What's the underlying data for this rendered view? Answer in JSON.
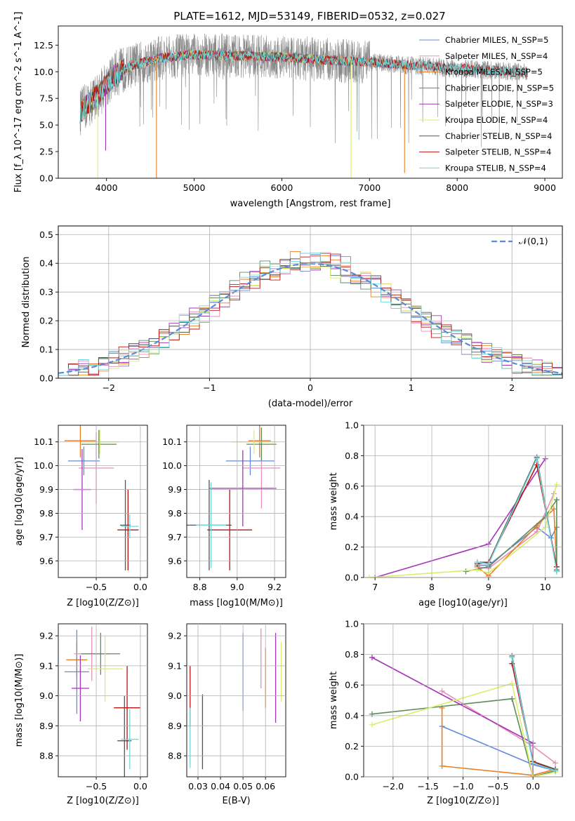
{
  "figure": {
    "title": "PLATE=1612, MJD=53149, FIBERID=0532, z=0.027"
  },
  "colors": {
    "chabrier_miles": "#6688dd",
    "salpeter_miles": "#e68fba",
    "kroupa_miles": "#e87e22",
    "chabrier_elodie": "#5e8c5e",
    "salpeter_elodie": "#a634b8",
    "kroupa_elodie": "#d9ef6a",
    "chabrier_stelib": "#555555",
    "salpeter_stelib": "#b81414",
    "kroupa_stelib": "#6fd8d8",
    "gauss": "#5b8bd6",
    "data": "#8a8a8a",
    "grid": "#b0b0b0"
  },
  "chart_data": [
    {
      "id": "spectrum",
      "type": "line",
      "xlabel": "wavelength [Angstrom, rest frame]",
      "ylabel": "Flux [f_λ 10^-17 erg cm^-2 s^-1 A^-1]",
      "xlim": [
        3450,
        9200
      ],
      "ylim": [
        0,
        14.3
      ],
      "xticks": [
        4000,
        5000,
        6000,
        7000,
        8000,
        9000
      ],
      "xtick_labels": [
        "4000",
        "5000",
        "6000",
        "7000",
        "8000",
        "9000"
      ],
      "yticks": [
        0,
        2.5,
        5,
        7.5,
        10,
        12.5
      ],
      "ytick_labels": [
        "0.0",
        "2.5",
        "5.0",
        "7.5",
        "10.0",
        "12.5"
      ],
      "grid": false,
      "legend_placement": "upper-right",
      "data_range": [
        3700,
        8800
      ],
      "continuum": [
        [
          3700,
          6.2
        ],
        [
          3800,
          7.0
        ],
        [
          3900,
          7.8
        ],
        [
          4000,
          8.8
        ],
        [
          4100,
          9.8
        ],
        [
          4300,
          10.6
        ],
        [
          4600,
          11.3
        ],
        [
          5000,
          11.6
        ],
        [
          5500,
          11.5
        ],
        [
          6000,
          11.4
        ],
        [
          6500,
          11.1
        ],
        [
          7000,
          10.9
        ],
        [
          7500,
          10.6
        ],
        [
          8000,
          10.3
        ],
        [
          8500,
          10.1
        ],
        [
          8800,
          9.9
        ]
      ],
      "models": [
        {
          "key": "chabrier_miles",
          "name": "Chabrier MILES, N_SSP=5",
          "end": 7400
        },
        {
          "key": "salpeter_miles",
          "name": "Salpeter MILES, N_SSP=4",
          "end": 7400
        },
        {
          "key": "kroupa_miles",
          "name": "Kroupa MILES, N_SSP=5",
          "end": 7400
        },
        {
          "key": "chabrier_elodie",
          "name": "Chabrier ELODIE, N_SSP=5",
          "end": 6800
        },
        {
          "key": "salpeter_elodie",
          "name": "Salpeter ELODIE, N_SSP=3",
          "end": 6800
        },
        {
          "key": "kroupa_elodie",
          "name": "Kroupa ELODIE, N_SSP=4",
          "end": 6800
        },
        {
          "key": "chabrier_stelib",
          "name": "Chabrier STELIB, N_SSP=4",
          "end": 8800
        },
        {
          "key": "salpeter_stelib",
          "name": "Salpeter STELIB, N_SSP=4",
          "end": 8800
        },
        {
          "key": "kroupa_stelib",
          "name": "Kroupa STELIB, N_SSP=4",
          "end": 8800
        }
      ],
      "drops": [
        {
          "x": 3900,
          "y": 0,
          "key": "kroupa_elodie"
        },
        {
          "x": 3990,
          "y": 2.6,
          "key": "salpeter_elodie"
        },
        {
          "x": 4570,
          "y": 0,
          "key": "kroupa_miles"
        },
        {
          "x": 6790,
          "y": 0,
          "key": "kroupa_elodie"
        },
        {
          "x": 7400,
          "y": 0.5,
          "key": "kroupa_miles"
        },
        {
          "x": 6880,
          "y": 3.6,
          "key": "kroupa_stelib"
        }
      ]
    },
    {
      "id": "residuals",
      "type": "histogram",
      "xlabel": "(data-model)/error",
      "ylabel": "Normed distribution",
      "xlim": [
        -2.5,
        2.5
      ],
      "ylim": [
        0,
        0.53
      ],
      "xticks": [
        -2,
        -1,
        0,
        1,
        2
      ],
      "xtick_labels": [
        "−2",
        "−1",
        "0",
        "1",
        "2"
      ],
      "yticks": [
        0,
        0.1,
        0.2,
        0.3,
        0.4,
        0.5
      ],
      "ytick_labels": [
        "0.0",
        "0.1",
        "0.2",
        "0.3",
        "0.4",
        "0.5"
      ],
      "grid": true,
      "bin_width": 0.1,
      "legend": "𝒩(0,1)",
      "legend_placement": "upper-right",
      "reference": "standard normal"
    },
    {
      "id": "age_vs_Z",
      "type": "errorbar",
      "xlabel": "Z [log10(Z/Z⊙)]",
      "ylabel": "age [log10(age/yr)]",
      "xlim": [
        -0.93,
        0.08
      ],
      "ylim": [
        9.53,
        10.17
      ],
      "xticks": [
        -0.5,
        0.0
      ],
      "xtick_labels": [
        "−0.5",
        "0.0"
      ],
      "yticks": [
        9.6,
        9.7,
        9.8,
        9.9,
        10.0,
        10.1
      ],
      "ytick_labels": [
        "9.6",
        "9.7",
        "9.8",
        "9.9",
        "10.0",
        "10.1"
      ],
      "grid": true,
      "points": [
        {
          "key": "kroupa_miles",
          "x": -0.68,
          "xerr": 0.18,
          "y": 10.105,
          "yerr": 0.07
        },
        {
          "key": "chabrier_miles",
          "x": -0.64,
          "xerr": 0.18,
          "y": 10.02,
          "yerr": 0.06
        },
        {
          "key": "salpeter_miles",
          "x": -0.5,
          "xerr": 0.2,
          "y": 9.99,
          "yerr": 0.15
        },
        {
          "key": "chabrier_elodie",
          "x": -0.47,
          "xerr": 0.2,
          "y": 10.09,
          "yerr": 0.06
        },
        {
          "key": "kroupa_elodie",
          "x": -0.46,
          "xerr": 0.22,
          "y": 10.1,
          "yerr": 0.05
        },
        {
          "key": "salpeter_elodie",
          "x": -0.66,
          "xerr": 0.1,
          "y": 9.9,
          "yerr": 0.17
        },
        {
          "key": "chabrier_stelib",
          "x": -0.17,
          "xerr": 0.06,
          "y": 9.75,
          "yerr": 0.19
        },
        {
          "key": "salpeter_stelib",
          "x": -0.14,
          "xerr": 0.12,
          "y": 9.73,
          "yerr": 0.17
        },
        {
          "key": "kroupa_stelib",
          "x": -0.12,
          "xerr": 0.1,
          "y": 9.745,
          "yerr": 0.05
        }
      ]
    },
    {
      "id": "age_vs_mass",
      "type": "errorbar",
      "xlabel": "mass [log10(M/M⊙)]",
      "ylabel": "",
      "xlim": [
        8.73,
        9.26
      ],
      "ylim": [
        9.53,
        10.17
      ],
      "xticks": [
        8.8,
        9.0,
        9.2
      ],
      "xtick_labels": [
        "8.8",
        "9.0",
        "9.2"
      ],
      "yticks": [
        9.6,
        9.7,
        9.8,
        9.9,
        10.0,
        10.1
      ],
      "ytick_labels": [
        "9.6",
        "9.7",
        "9.8",
        "9.9",
        "10.0",
        "10.1"
      ],
      "grid": true,
      "points": [
        {
          "key": "kroupa_miles",
          "x": 9.12,
          "xerr": 0.06,
          "y": 10.105,
          "yerr": 0.07
        },
        {
          "key": "chabrier_miles",
          "x": 9.07,
          "xerr": 0.13,
          "y": 10.02,
          "yerr": 0.06
        },
        {
          "key": "salpeter_miles",
          "x": 9.13,
          "xerr": 0.1,
          "y": 9.99,
          "yerr": 0.17
        },
        {
          "key": "chabrier_elodie",
          "x": 9.13,
          "xerr": 0.08,
          "y": 10.09,
          "yerr": 0.07
        },
        {
          "key": "kroupa_elodie",
          "x": 9.09,
          "xerr": 0.12,
          "y": 10.1,
          "yerr": 0.05
        },
        {
          "key": "salpeter_elodie",
          "x": 9.03,
          "xerr": 0.18,
          "y": 9.905,
          "yerr": 0.16
        },
        {
          "key": "chabrier_stelib",
          "x": 8.85,
          "xerr": 0.12,
          "y": 9.75,
          "yerr": 0.19
        },
        {
          "key": "salpeter_stelib",
          "x": 8.96,
          "xerr": 0.12,
          "y": 9.73,
          "yerr": 0.17
        },
        {
          "key": "kroupa_stelib",
          "x": 8.86,
          "xerr": 0.08,
          "y": 9.75,
          "yerr": 0.18
        }
      ]
    },
    {
      "id": "weight_vs_age",
      "type": "line",
      "xlabel": "age [log10(age/yr)]",
      "ylabel": "mass weight",
      "xlim": [
        6.8,
        10.3
      ],
      "ylim": [
        0,
        1.0
      ],
      "xticks": [
        7,
        8,
        9,
        10
      ],
      "xtick_labels": [
        "7",
        "8",
        "9",
        "10"
      ],
      "yticks": [
        0,
        0.2,
        0.4,
        0.6,
        0.8,
        1.0
      ],
      "ytick_labels": [
        "0.0",
        "0.2",
        "0.4",
        "0.6",
        "0.8",
        "1.0"
      ],
      "grid": true,
      "series": [
        {
          "key": "chabrier_miles",
          "points": [
            [
              8.8,
              0.08
            ],
            [
              9.0,
              0.08
            ],
            [
              9.85,
              0.33
            ],
            [
              10.1,
              0.26
            ],
            [
              10.2,
              0.33
            ]
          ]
        },
        {
          "key": "salpeter_miles",
          "points": [
            [
              8.8,
              0.07
            ],
            [
              9.0,
              0.06
            ],
            [
              9.85,
              0.3
            ],
            [
              10.15,
              0.55
            ]
          ]
        },
        {
          "key": "kroupa_miles",
          "points": [
            [
              8.8,
              0.07
            ],
            [
              9.0,
              0.01
            ],
            [
              9.85,
              0.34
            ],
            [
              10.15,
              0.45
            ],
            [
              10.2,
              0.07
            ]
          ]
        },
        {
          "key": "chabrier_elodie",
          "points": [
            [
              8.6,
              0.04
            ],
            [
              9.0,
              0.07
            ],
            [
              10.0,
              0.4
            ],
            [
              10.2,
              0.51
            ],
            [
              10.2,
              0.04
            ]
          ]
        },
        {
          "key": "salpeter_elodie",
          "points": [
            [
              7.0,
              0.0
            ],
            [
              9.0,
              0.22
            ],
            [
              10.0,
              0.78
            ]
          ]
        },
        {
          "key": "kroupa_elodie",
          "points": [
            [
              6.9,
              0.0
            ],
            [
              8.8,
              0.05
            ],
            [
              9.0,
              0.03
            ],
            [
              10.0,
              0.33
            ],
            [
              10.2,
              0.61
            ]
          ]
        },
        {
          "key": "chabrier_stelib",
          "points": [
            [
              8.8,
              0.1
            ],
            [
              9.0,
              0.1
            ],
            [
              9.85,
              0.79
            ],
            [
              10.2,
              0.05
            ]
          ]
        },
        {
          "key": "salpeter_stelib",
          "points": [
            [
              8.8,
              0.09
            ],
            [
              9.0,
              0.1
            ],
            [
              9.85,
              0.74
            ],
            [
              10.2,
              0.07
            ]
          ]
        },
        {
          "key": "kroupa_stelib",
          "points": [
            [
              8.8,
              0.1
            ],
            [
              9.0,
              0.09
            ],
            [
              9.85,
              0.78
            ],
            [
              10.2,
              0.04
            ]
          ]
        }
      ]
    },
    {
      "id": "mass_vs_Z",
      "type": "errorbar",
      "xlabel": "Z [log10(Z/Z⊙)]",
      "ylabel": "mass [log10(M/M⊙)]",
      "xlim": [
        -0.93,
        0.08
      ],
      "ylim": [
        8.73,
        9.24
      ],
      "xticks": [
        -0.5,
        0.0
      ],
      "xtick_labels": [
        "−0.5",
        "0.0"
      ],
      "yticks": [
        8.8,
        8.9,
        9.0,
        9.1,
        9.2
      ],
      "ytick_labels": [
        "8.8",
        "8.9",
        "9.0",
        "9.1",
        "9.2"
      ],
      "grid": true,
      "points": [
        {
          "key": "kroupa_miles",
          "x": -0.72,
          "xerr": 0.12,
          "y": 9.12,
          "yerr": 0.06
        },
        {
          "key": "chabrier_miles",
          "x": -0.72,
          "xerr": 0.14,
          "y": 9.08,
          "yerr": 0.14
        },
        {
          "key": "salpeter_miles",
          "x": -0.55,
          "xerr": 0.2,
          "y": 9.14,
          "yerr": 0.09
        },
        {
          "key": "chabrier_elodie",
          "x": -0.45,
          "xerr": 0.22,
          "y": 9.14,
          "yerr": 0.07
        },
        {
          "key": "kroupa_elodie",
          "x": -0.4,
          "xerr": 0.2,
          "y": 9.09,
          "yerr": 0.11
        },
        {
          "key": "salpeter_elodie",
          "x": -0.68,
          "xerr": 0.1,
          "y": 9.025,
          "yerr": 0.11
        },
        {
          "key": "chabrier_stelib",
          "x": -0.18,
          "xerr": 0.08,
          "y": 8.85,
          "yerr": 0.15
        },
        {
          "key": "salpeter_stelib",
          "x": -0.15,
          "xerr": 0.15,
          "y": 8.96,
          "yerr": 0.14
        },
        {
          "key": "kroupa_stelib",
          "x": -0.12,
          "xerr": 0.1,
          "y": 8.855,
          "yerr": 0.1
        }
      ]
    },
    {
      "id": "mass_vs_EBV",
      "type": "errorbar",
      "xlabel": "E(B-V)",
      "ylabel": "",
      "xlim": [
        0.025,
        0.069
      ],
      "ylim": [
        8.73,
        9.24
      ],
      "xticks": [
        0.03,
        0.04,
        0.05,
        0.06
      ],
      "xtick_labels": [
        "0.03",
        "0.04",
        "0.05",
        "0.06"
      ],
      "yticks": [
        8.8,
        8.9,
        9.0,
        9.1,
        9.2
      ],
      "ytick_labels": [
        "8.8",
        "8.9",
        "9.0",
        "9.1",
        "9.2"
      ],
      "grid": true,
      "points": [
        {
          "key": "chabrier_miles",
          "x": 0.05,
          "xerr": 0,
          "y": 9.08,
          "yerr": 0.13
        },
        {
          "key": "salpeter_miles",
          "x": 0.058,
          "xerr": 0,
          "y": 9.125,
          "yerr": 0.1
        },
        {
          "key": "kroupa_miles",
          "x": 0.06,
          "xerr": 0,
          "y": 9.06,
          "yerr": 0.1
        },
        {
          "key": "salpeter_elodie",
          "x": 0.0645,
          "xerr": 0,
          "y": 9.06,
          "yerr": 0.15
        },
        {
          "key": "kroupa_elodie",
          "x": 0.067,
          "xerr": 0,
          "y": 9.08,
          "yerr": 0.1
        },
        {
          "key": "chabrier_stelib",
          "x": 0.032,
          "xerr": 0,
          "y": 8.88,
          "yerr": 0.125
        },
        {
          "key": "salpeter_stelib",
          "x": 0.0265,
          "xerr": 0,
          "y": 9.0,
          "yerr": 0.1
        },
        {
          "key": "kroupa_stelib",
          "x": 0.0265,
          "xerr": 0,
          "y": 8.86,
          "yerr": 0.1
        }
      ]
    },
    {
      "id": "weight_vs_Z",
      "type": "line",
      "xlabel": "Z [log10(Z/Z⊙)]",
      "ylabel": "mass weight",
      "xlim": [
        -2.42,
        0.42
      ],
      "ylim": [
        0,
        1.0
      ],
      "xticks": [
        -2.0,
        -1.5,
        -1.0,
        -0.5,
        0.0
      ],
      "xtick_labels": [
        "−2.0",
        "−1.5",
        "−1.0",
        "−0.5",
        "0.0"
      ],
      "yticks": [
        0,
        0.2,
        0.4,
        0.6,
        0.8,
        1.0
      ],
      "ytick_labels": [
        "0.0",
        "0.2",
        "0.4",
        "0.6",
        "0.8",
        "1.0"
      ],
      "grid": true,
      "series": [
        {
          "key": "chabrier_miles",
          "points": [
            [
              -1.3,
              0.33
            ],
            [
              0.0,
              0.08
            ],
            [
              0.32,
              0.04
            ]
          ]
        },
        {
          "key": "salpeter_miles",
          "points": [
            [
              -1.3,
              0.56
            ],
            [
              0.0,
              0.2
            ],
            [
              0.32,
              0.09
            ]
          ]
        },
        {
          "key": "kroupa_miles",
          "points": [
            [
              -1.3,
              0.45
            ],
            [
              -1.3,
              0.07
            ],
            [
              0.0,
              0.01
            ],
            [
              0.32,
              0.05
            ]
          ]
        },
        {
          "key": "chabrier_elodie",
          "points": [
            [
              -2.3,
              0.41
            ],
            [
              -0.3,
              0.51
            ],
            [
              0.0,
              0.0
            ],
            [
              0.32,
              0.04
            ]
          ]
        },
        {
          "key": "salpeter_elodie",
          "points": [
            [
              -2.3,
              0.78
            ],
            [
              0.0,
              0.22
            ],
            [
              0.0,
              0.0
            ]
          ]
        },
        {
          "key": "kroupa_elodie",
          "points": [
            [
              -2.3,
              0.34
            ],
            [
              -0.3,
              0.61
            ],
            [
              0.0,
              0.0
            ],
            [
              0.32,
              0.03
            ]
          ]
        },
        {
          "key": "chabrier_stelib",
          "points": [
            [
              -0.3,
              0.79
            ],
            [
              0.0,
              0.1
            ],
            [
              0.32,
              0.05
            ]
          ]
        },
        {
          "key": "salpeter_stelib",
          "points": [
            [
              -0.3,
              0.74
            ],
            [
              0.0,
              0.1
            ],
            [
              0.32,
              0.04
            ]
          ]
        },
        {
          "key": "kroupa_stelib",
          "points": [
            [
              -0.3,
              0.78
            ],
            [
              0.0,
              0.09
            ],
            [
              0.32,
              0.04
            ]
          ]
        }
      ]
    }
  ]
}
